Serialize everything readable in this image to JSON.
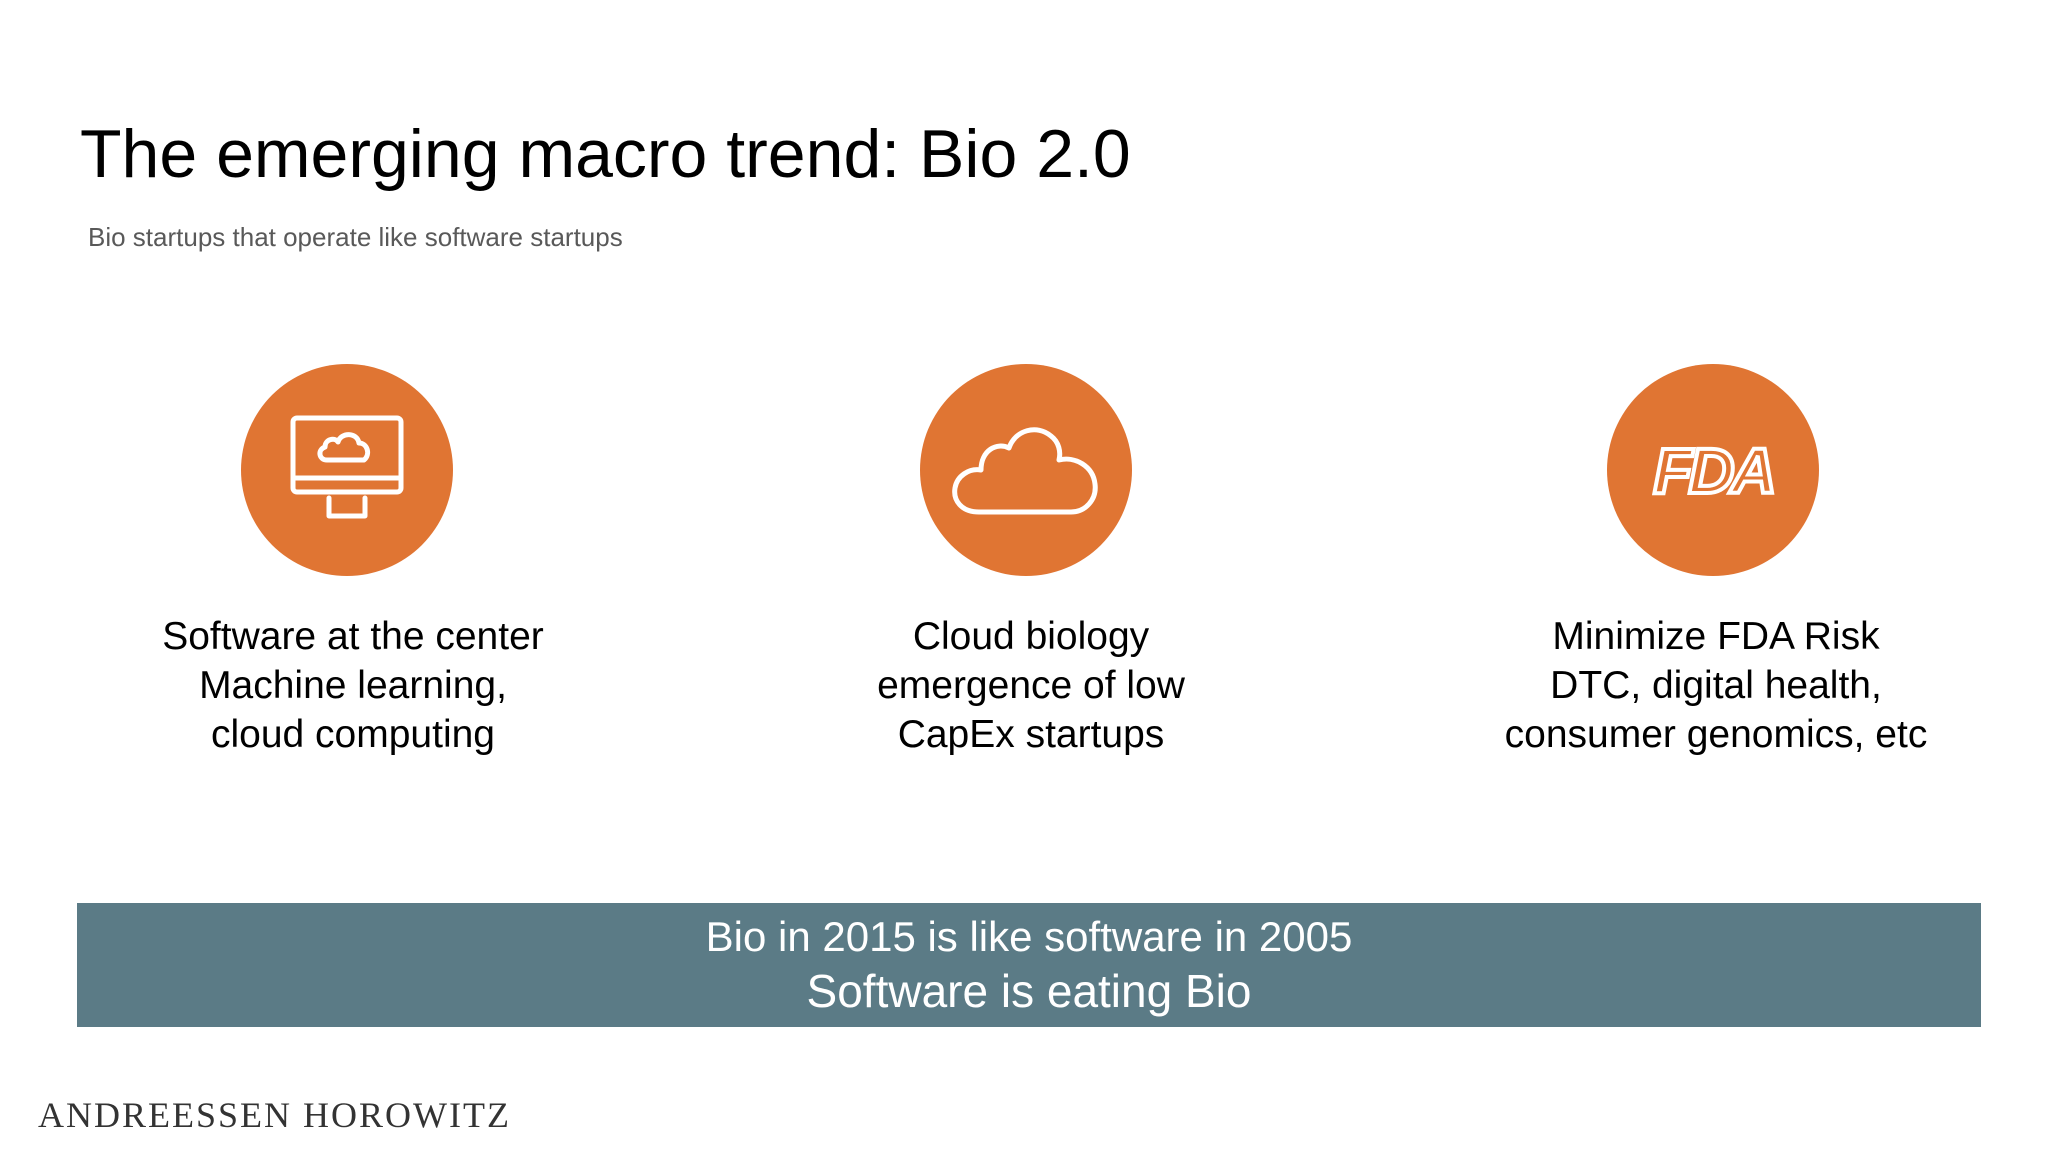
{
  "slide": {
    "title": "The emerging macro trend: Bio 2.0",
    "subtitle": "Bio startups that operate like software startups"
  },
  "accent_color": "#E07533",
  "banner_color": "#5B7B86",
  "columns": [
    {
      "icon": "computer-cloud-icon",
      "lines": [
        "Software at the center",
        "Machine learning,",
        "cloud computing"
      ]
    },
    {
      "icon": "cloud-icon",
      "lines": [
        "Cloud biology",
        "emergence of low",
        "CapEx startups"
      ]
    },
    {
      "icon": "fda-logo-icon",
      "icon_text": "FDA",
      "lines": [
        "Minimize FDA Risk",
        "DTC, digital health,",
        "consumer genomics, etc"
      ]
    }
  ],
  "banner": {
    "line1": "Bio in 2015 is like software in 2005",
    "line2": "Software is eating Bio"
  },
  "footer": {
    "logo": "ANDREESSEN HOROWITZ"
  }
}
